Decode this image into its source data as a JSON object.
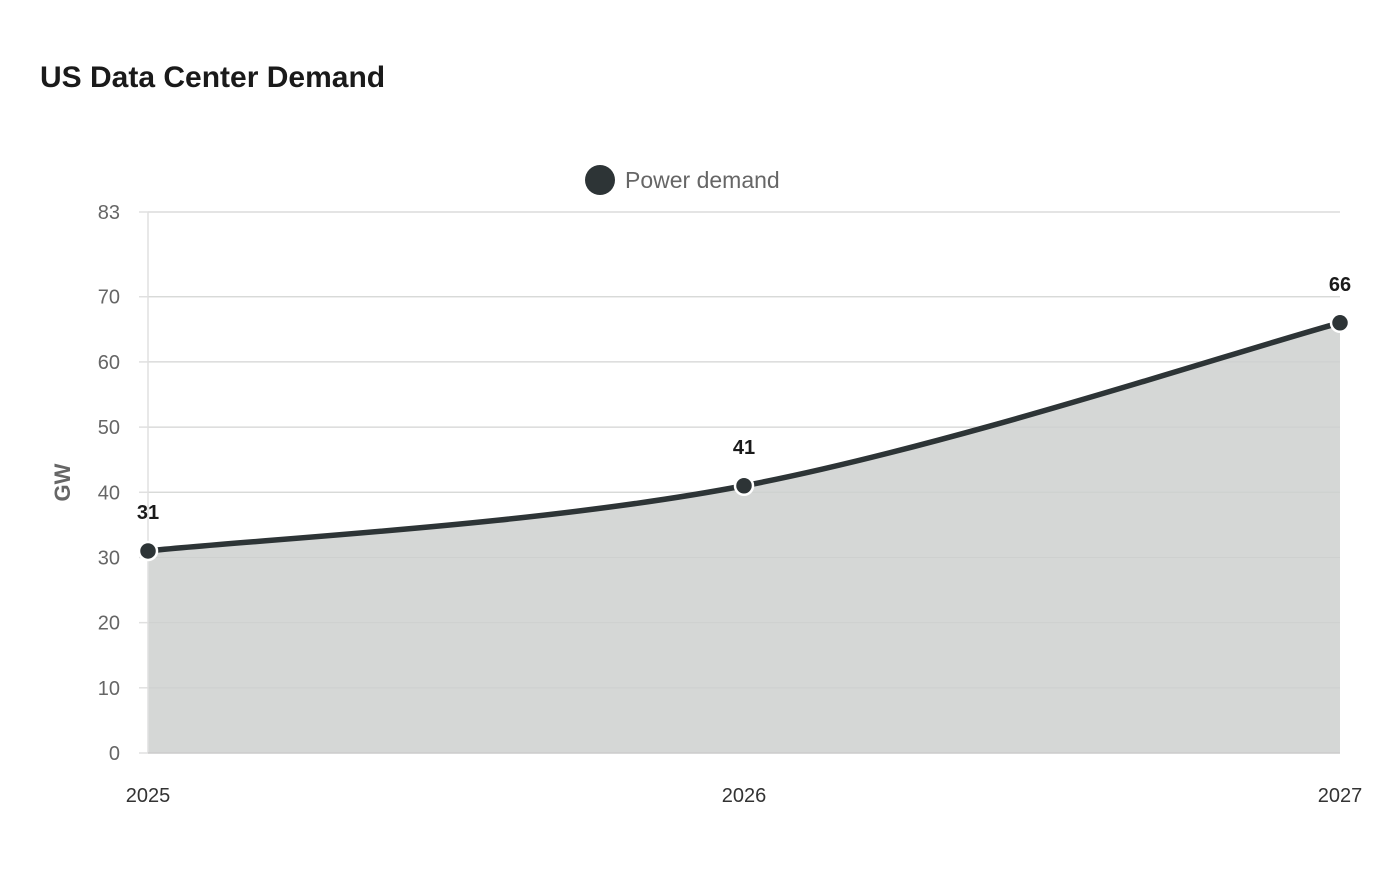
{
  "chart_data": {
    "type": "area",
    "title": "US Data Center Demand",
    "xlabel": "",
    "ylabel": "GW",
    "categories": [
      "2025",
      "2026",
      "2027"
    ],
    "series": [
      {
        "name": "Power demand",
        "values": [
          31,
          41,
          66
        ],
        "color": "#2d3436",
        "fill": "#d5d7d6"
      }
    ],
    "ylim": [
      0,
      83
    ],
    "yticks": [
      0,
      10,
      20,
      30,
      40,
      50,
      60,
      70,
      83
    ],
    "grid": true,
    "legend_position": "top-center",
    "data_labels": true
  }
}
